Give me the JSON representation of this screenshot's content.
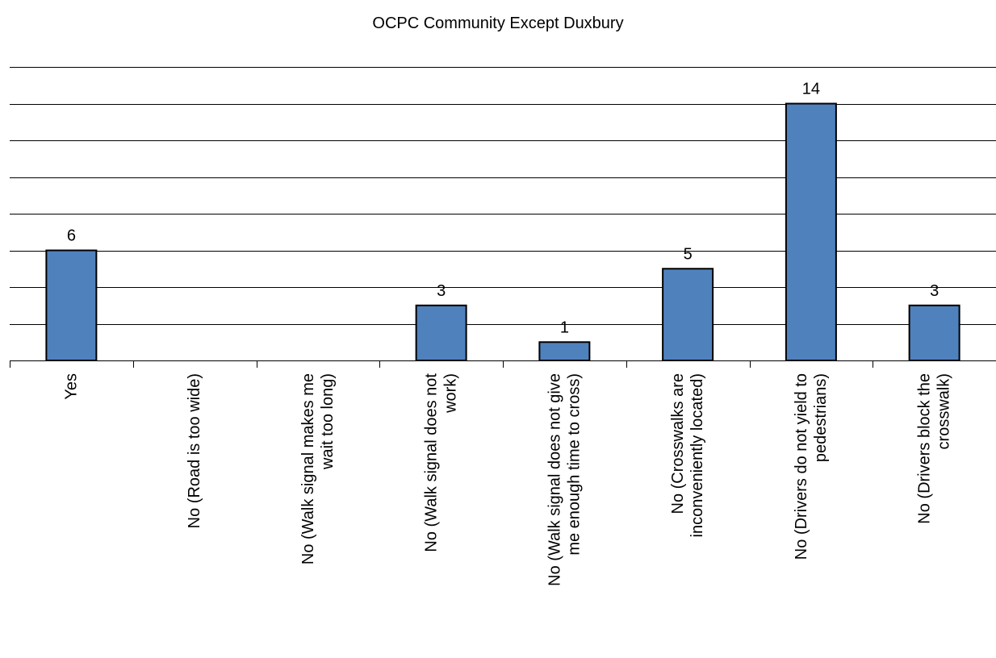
{
  "chart_data": {
    "type": "bar",
    "title": "OCPC  Community Except Duxbury",
    "categories": [
      [
        "Yes"
      ],
      [
        "No (Road is too wide)"
      ],
      [
        "No (Walk signal makes me",
        "wait too long)"
      ],
      [
        "No (Walk signal does not",
        "work)"
      ],
      [
        "No (Walk signal does not give",
        "me enough time to cross)"
      ],
      [
        "No (Crosswalks are",
        "inconveniently located)"
      ],
      [
        "No (Drivers do not yield to",
        "pedestrians)"
      ],
      [
        "No (Drivers block the",
        "crosswalk)"
      ]
    ],
    "values": [
      6,
      0,
      0,
      3,
      1,
      5,
      14,
      3
    ],
    "data_labels": [
      "6",
      "",
      "",
      "3",
      "1",
      "5",
      "14",
      "3"
    ],
    "ylim": [
      0,
      16
    ],
    "grid": true,
    "bar_color": "#4f81bd"
  }
}
